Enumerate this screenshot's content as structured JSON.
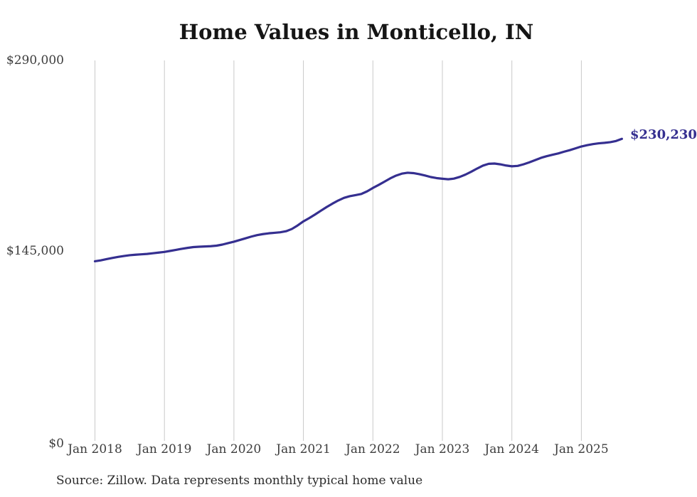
{
  "title": "Home Values in Monticello, IN",
  "annotation": {
    "end_value_label": "$230,230"
  },
  "source_note": "Source: Zillow. Data represents monthly typical home value",
  "colors": {
    "background": "#ffffff",
    "line": "#352f90",
    "grid": "#c9c9c9",
    "title_text": "#151515",
    "axis_text": "#3d3d3d",
    "annotation_text": "#352f90"
  },
  "chart_data": {
    "type": "line",
    "title": "Home Values in Monticello, IN",
    "xlabel": "",
    "ylabel": "",
    "ylim": [
      0,
      290000
    ],
    "grid": "vertical-only",
    "legend": "none",
    "x_start": "2018-01",
    "x_end": "2025-08",
    "frequency": "monthly",
    "x_tick_labels": [
      "Jan 2018",
      "Jan 2019",
      "Jan 2020",
      "Jan 2021",
      "Jan 2022",
      "Jan 2023",
      "Jan 2024",
      "Jan 2025"
    ],
    "y_ticks": [
      {
        "label": "$0",
        "value": 0
      },
      {
        "label": "$145,000",
        "value": 145000
      },
      {
        "label": "$290,000",
        "value": 290000
      }
    ],
    "series": [
      {
        "name": "Monthly typical home value",
        "last_value": 230230,
        "values": [
          136900,
          137600,
          138500,
          139400,
          140200,
          140900,
          141500,
          141900,
          142200,
          142500,
          143000,
          143500,
          144000,
          144800,
          145600,
          146400,
          147100,
          147700,
          148000,
          148200,
          148400,
          148800,
          149600,
          150700,
          151800,
          153100,
          154400,
          155700,
          156800,
          157600,
          158200,
          158600,
          159000,
          159800,
          161500,
          164200,
          167300,
          169800,
          172500,
          175400,
          178200,
          180800,
          183200,
          185200,
          186500,
          187300,
          188200,
          190200,
          192800,
          195100,
          197600,
          200100,
          202200,
          203700,
          204400,
          204100,
          203300,
          202300,
          201100,
          200300,
          199800,
          199400,
          199900,
          201200,
          203000,
          205200,
          207600,
          209800,
          211200,
          211400,
          210800,
          209900,
          209300,
          209600,
          210800,
          212300,
          214000,
          215700,
          217000,
          218100,
          219100,
          220400,
          221600,
          223000,
          224400,
          225400,
          226200,
          226800,
          227200,
          227700,
          228600,
          230230
        ]
      }
    ]
  }
}
